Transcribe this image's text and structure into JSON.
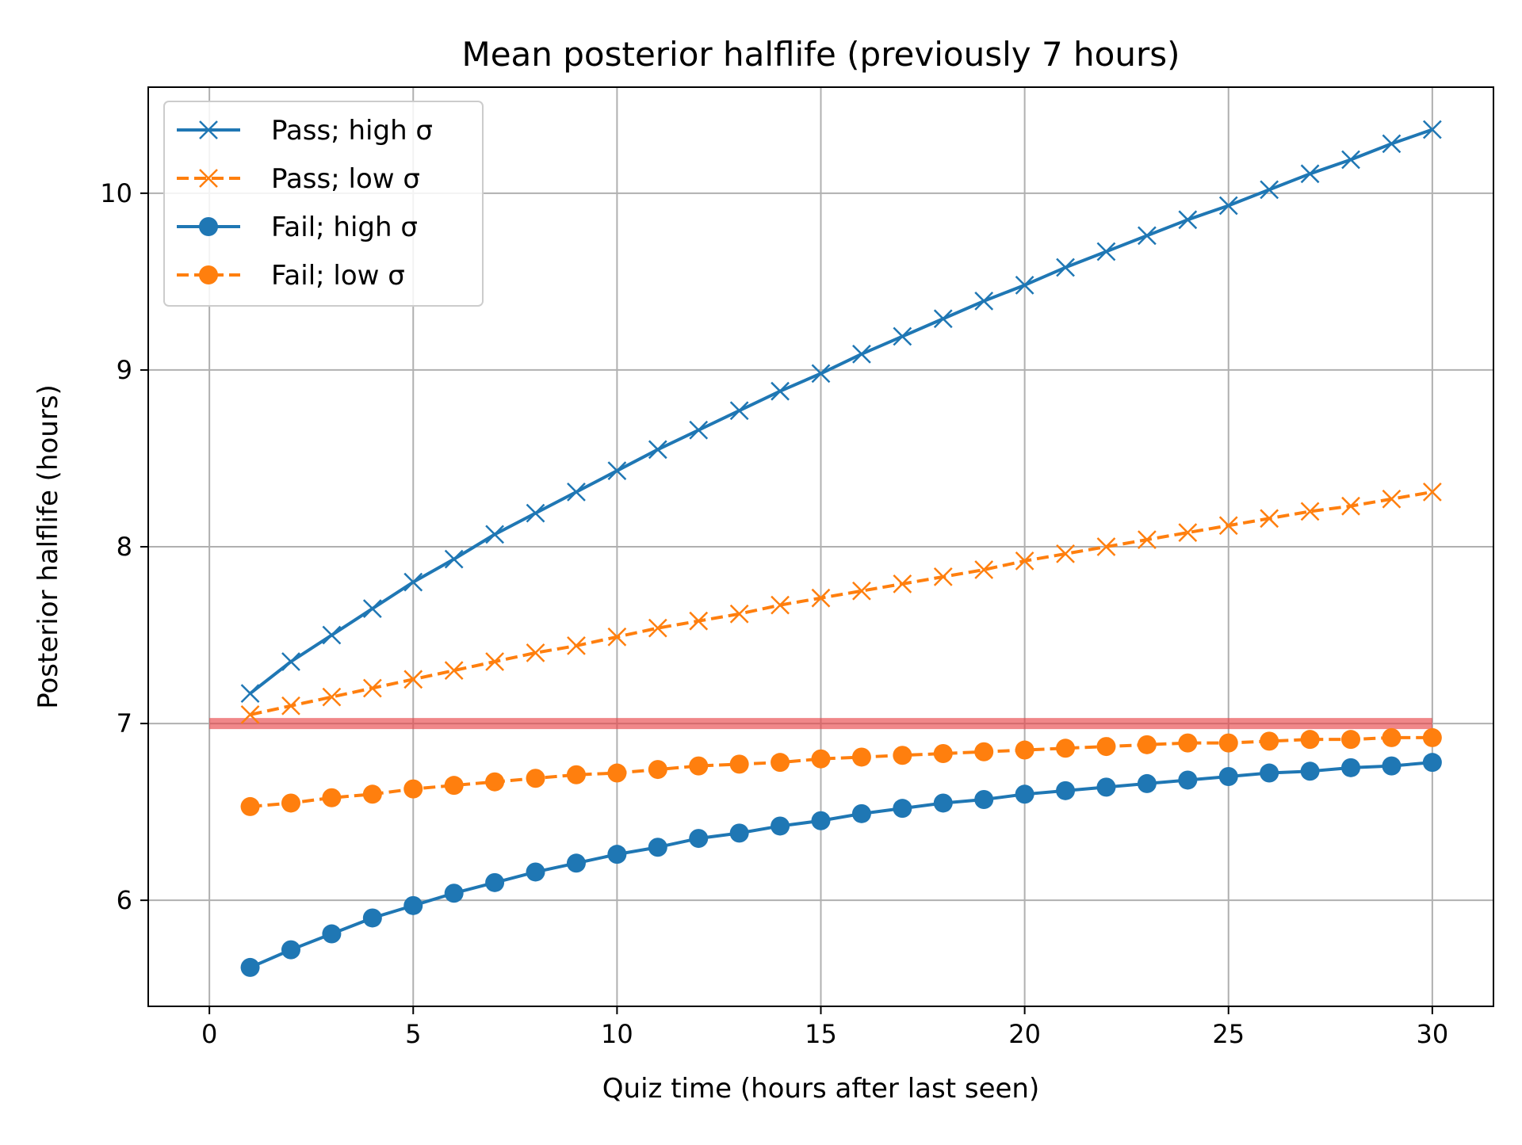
{
  "chart_data": {
    "type": "line",
    "title": "Mean posterior halflife (previously 7 hours)",
    "xlabel": "Quiz time (hours after last seen)",
    "ylabel": "Posterior halflife (hours)",
    "xlim": [
      -1.5,
      31.5
    ],
    "ylim": [
      5.4,
      10.6
    ],
    "xticks": [
      0,
      5,
      10,
      15,
      20,
      25,
      30
    ],
    "yticks": [
      6,
      7,
      8,
      9,
      10
    ],
    "grid": true,
    "legend_position": "top-left",
    "reference_line": {
      "y": 7,
      "x_range": [
        0,
        30
      ],
      "color": "#e8474a"
    },
    "x": [
      1,
      2,
      3,
      4,
      5,
      6,
      7,
      8,
      9,
      10,
      11,
      12,
      13,
      14,
      15,
      16,
      17,
      18,
      19,
      20,
      21,
      22,
      23,
      24,
      25,
      26,
      27,
      28,
      29,
      30
    ],
    "series": [
      {
        "name": "Pass; high σ",
        "color": "#1f77b4",
        "linestyle": "solid",
        "marker": "x",
        "values": [
          7.17,
          7.35,
          7.5,
          7.65,
          7.8,
          7.93,
          8.07,
          8.19,
          8.31,
          8.43,
          8.55,
          8.66,
          8.77,
          8.88,
          8.98,
          9.09,
          9.19,
          9.29,
          9.39,
          9.48,
          9.58,
          9.67,
          9.76,
          9.85,
          9.93,
          10.02,
          10.11,
          10.19,
          10.28,
          10.36
        ]
      },
      {
        "name": "Pass; low σ",
        "color": "#ff7f0e",
        "linestyle": "dashed",
        "marker": "x",
        "values": [
          7.05,
          7.1,
          7.15,
          7.2,
          7.25,
          7.3,
          7.35,
          7.4,
          7.44,
          7.49,
          7.54,
          7.58,
          7.62,
          7.67,
          7.71,
          7.75,
          7.79,
          7.83,
          7.87,
          7.92,
          7.96,
          8.0,
          8.04,
          8.08,
          8.12,
          8.16,
          8.2,
          8.23,
          8.27,
          8.31
        ]
      },
      {
        "name": "Fail; high σ",
        "color": "#1f77b4",
        "linestyle": "solid",
        "marker": "o",
        "values": [
          5.62,
          5.72,
          5.81,
          5.9,
          5.97,
          6.04,
          6.1,
          6.16,
          6.21,
          6.26,
          6.3,
          6.35,
          6.38,
          6.42,
          6.45,
          6.49,
          6.52,
          6.55,
          6.57,
          6.6,
          6.62,
          6.64,
          6.66,
          6.68,
          6.7,
          6.72,
          6.73,
          6.75,
          6.76,
          6.78
        ]
      },
      {
        "name": "Fail; low σ",
        "color": "#ff7f0e",
        "linestyle": "dashed",
        "marker": "o",
        "values": [
          6.53,
          6.55,
          6.58,
          6.6,
          6.63,
          6.65,
          6.67,
          6.69,
          6.71,
          6.72,
          6.74,
          6.76,
          6.77,
          6.78,
          6.8,
          6.81,
          6.82,
          6.83,
          6.84,
          6.85,
          6.86,
          6.87,
          6.88,
          6.89,
          6.89,
          6.9,
          6.91,
          6.91,
          6.92,
          6.92
        ]
      }
    ]
  }
}
